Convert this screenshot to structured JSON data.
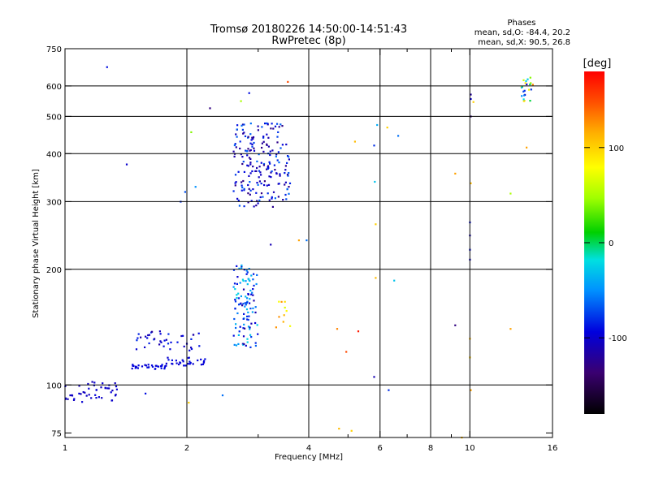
{
  "chart_data": {
    "type": "scatter",
    "title": "Tromsø 20180226 14:50:00-14:51:43",
    "subtitle": "RwPretec (8p)",
    "xlabel": "Frequency [MHz]",
    "ylabel": "Stationary phase Virtual Height [km]",
    "x_scale": "log",
    "y_scale": "log",
    "xlim": [
      1,
      16
    ],
    "ylim": [
      73,
      750
    ],
    "x_ticks": [
      1,
      2,
      4,
      6,
      8,
      10,
      16
    ],
    "x_tick_labels": [
      "1",
      "2",
      "4",
      "6",
      "8",
      "10",
      "16"
    ],
    "x_minor_ticks": [
      3,
      5,
      7,
      9
    ],
    "y_ticks": [
      75,
      100,
      200,
      300,
      400,
      500,
      600,
      750
    ],
    "y_tick_labels": [
      "75",
      "100",
      "200",
      "300",
      "400",
      "500",
      "600",
      "750"
    ],
    "x_grid": [
      2,
      4,
      6,
      8,
      10
    ],
    "y_grid": [
      100,
      200,
      300,
      400,
      500,
      600
    ],
    "grid": true,
    "legend_header": "Phases",
    "legend_lines": [
      "mean, sd,O: -84.4, 20.2",
      "mean, sd,X: 90.5, 26.8"
    ],
    "colorbar": {
      "label": "[deg]",
      "range": [
        -180,
        180
      ],
      "ticks": [
        100,
        0,
        -100
      ],
      "tick_labels": [
        "100",
        "0",
        "-100"
      ],
      "placement": "right"
    },
    "clusters": [
      {
        "f": [
          1.0,
          1.35
        ],
        "h": [
          90,
          102
        ],
        "phase": [
          -110,
          -95
        ],
        "n": 45
      },
      {
        "f": [
          1.45,
          1.78
        ],
        "h": [
          110,
          113
        ],
        "phase": [
          -100,
          -90
        ],
        "n": 34
      },
      {
        "f": [
          1.78,
          2.22
        ],
        "h": [
          112,
          118
        ],
        "phase": [
          -100,
          -90
        ],
        "n": 30
      },
      {
        "f": [
          1.5,
          2.2
        ],
        "h": [
          123,
          138
        ],
        "phase": [
          -120,
          -80
        ],
        "n": 40
      },
      {
        "f": [
          2.6,
          3.0
        ],
        "h": [
          125,
          205
        ],
        "phase": [
          -120,
          -20
        ],
        "n": 110
      },
      {
        "f": [
          2.6,
          3.6
        ],
        "h": [
          290,
          480
        ],
        "phase": [
          -130,
          -60
        ],
        "n": 200
      },
      {
        "f": [
          3.3,
          3.6
        ],
        "h": [
          140,
          165
        ],
        "phase": [
          60,
          130
        ],
        "n": 10
      },
      {
        "f": [
          13.4,
          14.2
        ],
        "h": [
          545,
          640
        ],
        "phase": [
          -120,
          120
        ],
        "n": 22
      }
    ],
    "points": [
      {
        "f": 1.27,
        "h": 672,
        "phase": -90
      },
      {
        "f": 1.42,
        "h": 375,
        "phase": -100
      },
      {
        "f": 1.58,
        "h": 95,
        "phase": -90
      },
      {
        "f": 1.93,
        "h": 300,
        "phase": -80
      },
      {
        "f": 1.98,
        "h": 318,
        "phase": -70
      },
      {
        "f": 2.05,
        "h": 455,
        "phase": 40
      },
      {
        "f": 2.1,
        "h": 328,
        "phase": -50
      },
      {
        "f": 2.02,
        "h": 90,
        "phase": 100
      },
      {
        "f": 2.28,
        "h": 525,
        "phase": -130
      },
      {
        "f": 2.45,
        "h": 94,
        "phase": -60
      },
      {
        "f": 2.85,
        "h": 575,
        "phase": -90
      },
      {
        "f": 2.72,
        "h": 548,
        "phase": 50
      },
      {
        "f": 3.55,
        "h": 615,
        "phase": 150
      },
      {
        "f": 3.78,
        "h": 238,
        "phase": 120
      },
      {
        "f": 3.95,
        "h": 238,
        "phase": -60
      },
      {
        "f": 3.22,
        "h": 232,
        "phase": -110
      },
      {
        "f": 4.7,
        "h": 140,
        "phase": 130
      },
      {
        "f": 4.95,
        "h": 122,
        "phase": 150
      },
      {
        "f": 5.3,
        "h": 138,
        "phase": 170
      },
      {
        "f": 4.75,
        "h": 77,
        "phase": 110
      },
      {
        "f": 5.1,
        "h": 76,
        "phase": 100
      },
      {
        "f": 5.2,
        "h": 430,
        "phase": 110
      },
      {
        "f": 5.8,
        "h": 420,
        "phase": -80
      },
      {
        "f": 5.9,
        "h": 475,
        "phase": -40
      },
      {
        "f": 6.25,
        "h": 468,
        "phase": 100
      },
      {
        "f": 6.65,
        "h": 445,
        "phase": -60
      },
      {
        "f": 5.82,
        "h": 338,
        "phase": -30
      },
      {
        "f": 5.85,
        "h": 262,
        "phase": 100
      },
      {
        "f": 5.85,
        "h": 190,
        "phase": 110
      },
      {
        "f": 6.5,
        "h": 187,
        "phase": -30
      },
      {
        "f": 5.8,
        "h": 105,
        "phase": -110
      },
      {
        "f": 6.3,
        "h": 97,
        "phase": -80
      },
      {
        "f": 9.2,
        "h": 355,
        "phase": 120
      },
      {
        "f": 9.2,
        "h": 143,
        "phase": -130
      },
      {
        "f": 9.55,
        "h": 73,
        "phase": 110
      },
      {
        "f": 10.05,
        "h": 570,
        "phase": -120
      },
      {
        "f": 10.05,
        "h": 555,
        "phase": -100
      },
      {
        "f": 10.2,
        "h": 545,
        "phase": 100
      },
      {
        "f": 10.05,
        "h": 500,
        "phase": -130
      },
      {
        "f": 10.05,
        "h": 335,
        "phase": 110
      },
      {
        "f": 10.0,
        "h": 265,
        "phase": -90
      },
      {
        "f": 10.0,
        "h": 245,
        "phase": -110
      },
      {
        "f": 10.0,
        "h": 225,
        "phase": -90
      },
      {
        "f": 10.0,
        "h": 212,
        "phase": -100
      },
      {
        "f": 10.0,
        "h": 132,
        "phase": 110
      },
      {
        "f": 10.0,
        "h": 118,
        "phase": 100
      },
      {
        "f": 10.05,
        "h": 97,
        "phase": 120
      },
      {
        "f": 12.6,
        "h": 315,
        "phase": 50
      },
      {
        "f": 12.6,
        "h": 140,
        "phase": 120
      },
      {
        "f": 13.8,
        "h": 415,
        "phase": 120
      },
      {
        "f": 14.3,
        "h": 605,
        "phase": 130
      }
    ]
  },
  "colors": {
    "grid": "#000000",
    "axis": "#000000",
    "background": "#ffffff",
    "colormap": "rainbow-black-to-red"
  }
}
